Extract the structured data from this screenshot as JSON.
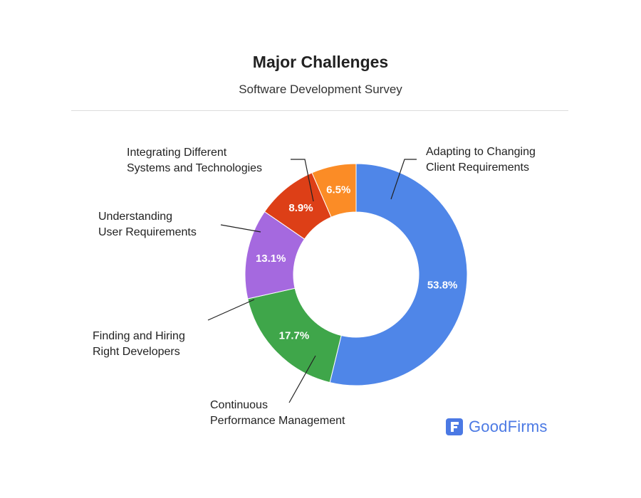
{
  "chart_data": {
    "type": "pie",
    "variant": "donut",
    "title": "Major Challenges",
    "subtitle": "Software Development Survey",
    "categories": [
      "Adapting to Changing Client Requirements",
      "Continuous Performance Management",
      "Finding and Hiring Right Developers",
      "Understanding User Requirements",
      "Integrating Different Systems and Technologies"
    ],
    "label_lines": [
      [
        "Adapting to Changing",
        "Client Requirements"
      ],
      [
        "Continuous",
        "Performance Management"
      ],
      [
        "Finding and Hiring",
        "Right Developers"
      ],
      [
        "Understanding",
        "User Requirements"
      ],
      [
        "Integrating Different",
        "Systems and Technologies"
      ]
    ],
    "values": [
      53.8,
      17.7,
      13.1,
      8.9,
      6.5
    ],
    "value_labels": [
      "53.8%",
      "17.7%",
      "13.1%",
      "8.9%",
      "6.5%"
    ],
    "colors": [
      "#4f86e8",
      "#3fa64a",
      "#a569df",
      "#dd3f17",
      "#fb8c26"
    ]
  },
  "brand": {
    "name": "GoodFirms",
    "color": "#4b79e4",
    "icon": "goodfirms-logo-icon"
  }
}
